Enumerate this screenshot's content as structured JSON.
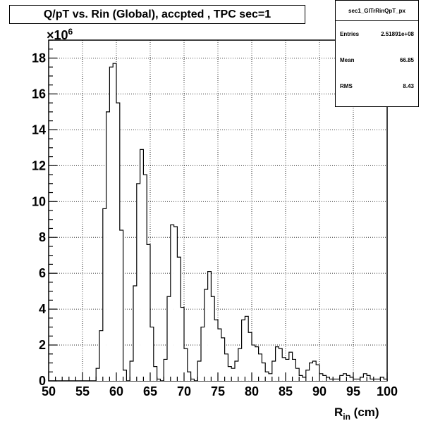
{
  "chart_data": {
    "type": "bar",
    "title": "Q/pT vs. Rin (Global), accpted , TPC sec=1",
    "xlabel_main": "R",
    "xlabel_sub": "in",
    "xlabel_unit": " (cm)",
    "ylabel_multiplier_base": "×10",
    "ylabel_multiplier_exp": "6",
    "xlim": [
      50,
      100
    ],
    "ylim": [
      0,
      19
    ],
    "x_ticks": [
      50,
      55,
      60,
      65,
      70,
      75,
      80,
      85,
      90,
      95,
      100
    ],
    "y_ticks": [
      0,
      2,
      4,
      6,
      8,
      10,
      12,
      14,
      16,
      18
    ],
    "grid": true,
    "x": [
      57.25,
      57.75,
      58.25,
      58.75,
      59.25,
      59.75,
      60.25,
      60.75,
      61.25,
      62.25,
      62.75,
      63.25,
      63.75,
      64.25,
      64.75,
      65.25,
      65.75,
      66.25,
      67.25,
      67.75,
      68.25,
      68.75,
      69.25,
      69.75,
      70.25,
      70.75,
      71.25,
      72.25,
      72.75,
      73.25,
      73.75,
      74.25,
      74.75,
      75.25,
      75.75,
      76.25,
      76.75,
      77.25,
      77.75,
      78.25,
      78.75,
      79.25,
      79.75,
      80.25,
      80.75,
      81.25,
      81.75,
      82.25,
      82.75,
      83.25,
      83.75,
      84.25,
      84.75,
      85.25,
      85.75,
      86.25,
      86.75,
      87.25,
      87.75,
      88.25,
      88.75,
      89.25,
      89.75,
      90.25,
      90.75,
      91.25,
      91.75,
      92.25,
      92.75,
      93.25,
      93.75,
      94.25,
      94.75,
      95.25,
      95.75,
      96.25,
      96.75,
      97.25,
      97.75,
      98.25,
      98.75,
      99.25,
      99.75
    ],
    "series": [
      {
        "values": [
          0.7,
          2.8,
          9.6,
          15.0,
          17.5,
          17.7,
          15.5,
          8.4,
          0.6,
          1.1,
          5.3,
          11.0,
          12.9,
          11.5,
          7.6,
          3.0,
          0.8,
          0.1,
          1.2,
          4.7,
          8.7,
          8.6,
          6.9,
          4.1,
          1.8,
          0.5,
          0.1,
          1.1,
          3.0,
          5.1,
          6.1,
          4.7,
          3.4,
          2.9,
          2.4,
          1.5,
          0.8,
          0.7,
          1.1,
          1.8,
          3.4,
          3.6,
          2.7,
          2.0,
          1.9,
          1.5,
          1.0,
          0.5,
          0.4,
          1.1,
          1.9,
          1.8,
          1.3,
          1.2,
          1.6,
          1.2,
          0.7,
          0.3,
          0.2,
          0.6,
          1.0,
          1.1,
          0.9,
          0.4,
          0.3,
          0.2,
          0.1,
          0.1,
          0.1,
          0.3,
          0.4,
          0.3,
          0.2,
          0.1,
          0.1,
          0.2,
          0.4,
          0.3,
          0.1,
          0.1,
          0.1,
          0.2,
          0.1
        ]
      }
    ]
  },
  "stats": {
    "name": "sec1_GlTrRinQpT_px",
    "rows": [
      {
        "label": "Entries",
        "value": "2.51891e+08"
      },
      {
        "label": "Mean",
        "value": "66.85"
      },
      {
        "label": "RMS",
        "value": "8.43"
      }
    ]
  }
}
